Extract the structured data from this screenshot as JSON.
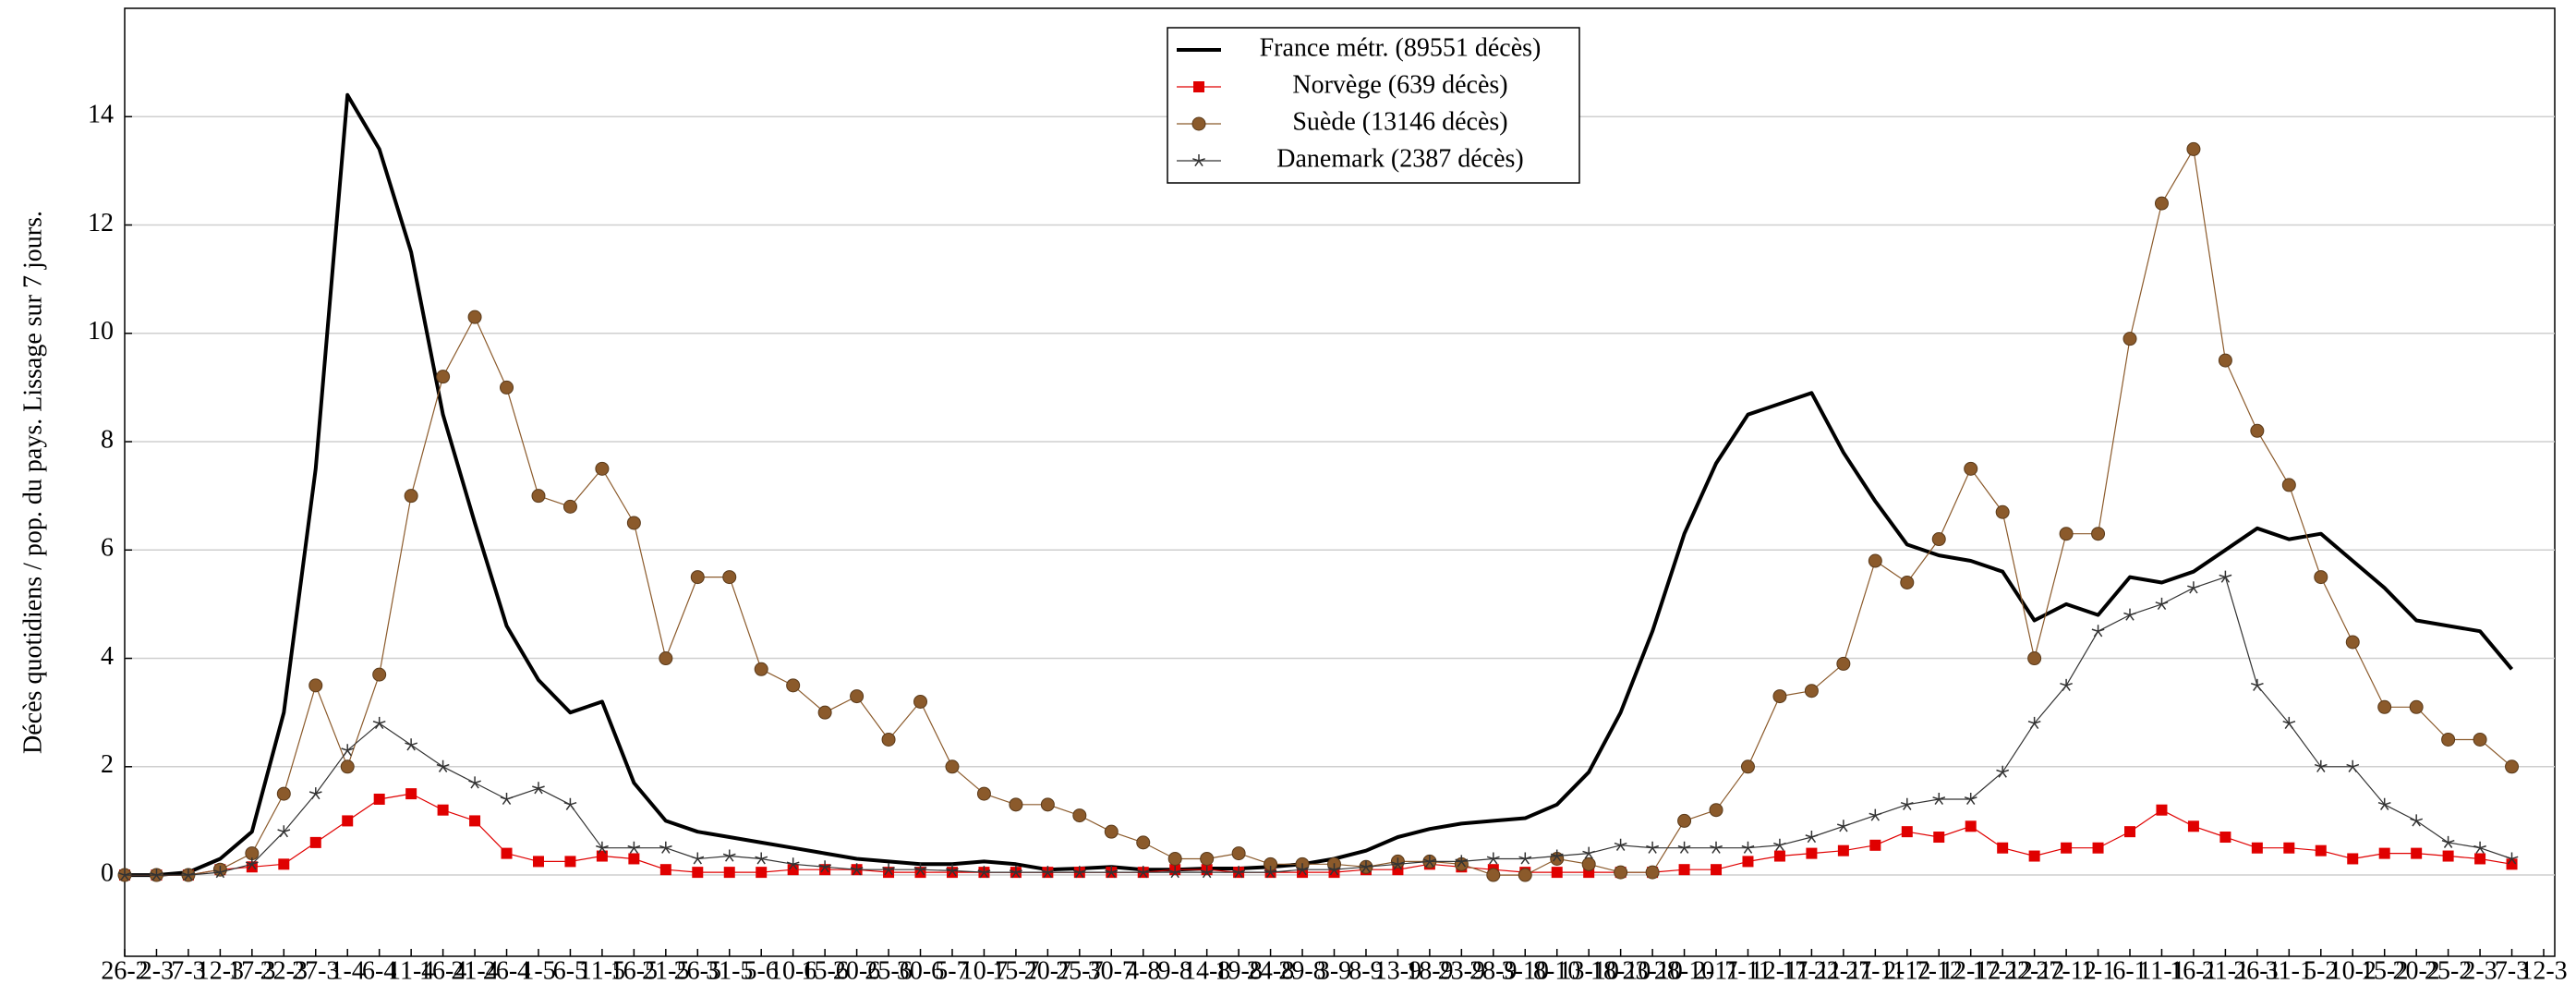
{
  "chart_data": {
    "type": "line",
    "y_label": "Décès quotidiens / pop. du pays. Lissage sur 7 jours.",
    "categories": [
      "26-2",
      "2-3",
      "7-3",
      "12-3",
      "17-3",
      "22-3",
      "27-3",
      "1-4",
      "6-4",
      "11-4",
      "16-4",
      "21-4",
      "26-4",
      "1-5",
      "6-5",
      "11-5",
      "16-5",
      "21-5",
      "26-5",
      "31-5",
      "5-6",
      "10-6",
      "15-6",
      "20-6",
      "25-6",
      "30-6",
      "5-7",
      "10-7",
      "15-7",
      "20-7",
      "25-7",
      "30-7",
      "4-8",
      "9-8",
      "14-8",
      "19-8",
      "24-8",
      "29-8",
      "3-9",
      "8-9",
      "13-9",
      "18-9",
      "23-9",
      "28-9",
      "3-10",
      "8-10",
      "13-10",
      "18-10",
      "23-10",
      "28-10",
      "2-11",
      "7-11",
      "12-11",
      "17-11",
      "22-11",
      "27-11",
      "2-12",
      "7-12",
      "12-12",
      "17-12",
      "22-12",
      "27-12",
      "1-1",
      "6-1",
      "11-1",
      "16-1",
      "21-1",
      "26-1",
      "31-1",
      "5-2",
      "10-2",
      "15-2",
      "20-2",
      "25-2",
      "2-3",
      "7-3",
      "12-3"
    ],
    "series": [
      {
        "name": "France métr. (89551 décès)",
        "color": "#000000",
        "marker": "none",
        "values": [
          0,
          0,
          0.05,
          0.3,
          0.8,
          3.0,
          7.5,
          14.4,
          13.4,
          11.5,
          8.5,
          6.5,
          4.6,
          3.6,
          3.0,
          3.2,
          1.7,
          1.0,
          0.8,
          0.7,
          0.6,
          0.5,
          0.4,
          0.3,
          0.25,
          0.2,
          0.2,
          0.25,
          0.2,
          0.1,
          0.12,
          0.15,
          0.1,
          0.1,
          0.12,
          0.12,
          0.15,
          0.2,
          0.3,
          0.45,
          0.7,
          0.85,
          0.95,
          1.0,
          1.05,
          1.3,
          1.9,
          3.0,
          4.5,
          6.3,
          7.6,
          8.5,
          8.7,
          8.9,
          7.8,
          6.9,
          6.1,
          5.9,
          5.8,
          5.6,
          4.7,
          5.0,
          4.8,
          5.5,
          5.4,
          5.6,
          6.0,
          6.4,
          6.2,
          6.3,
          5.8,
          5.3,
          4.7,
          4.6,
          4.5,
          3.8,
          null
        ]
      },
      {
        "name": "Norvège (639 décès)",
        "color": "#e00000",
        "marker": "square",
        "values": [
          0,
          0,
          0,
          0.1,
          0.15,
          0.2,
          0.6,
          1.0,
          1.4,
          1.5,
          1.2,
          1.0,
          0.4,
          0.25,
          0.25,
          0.35,
          0.3,
          0.1,
          0.05,
          0.05,
          0.05,
          0.1,
          0.1,
          0.1,
          0.05,
          0.05,
          0.05,
          0.05,
          0.05,
          0.05,
          0.05,
          0.05,
          0.05,
          0.1,
          0.1,
          0.05,
          0.05,
          0.05,
          0.05,
          0.1,
          0.1,
          0.2,
          0.15,
          0.1,
          0.05,
          0.05,
          0.05,
          0.05,
          0.05,
          0.1,
          0.1,
          0.25,
          0.35,
          0.4,
          0.45,
          0.55,
          0.8,
          0.7,
          0.9,
          0.5,
          0.35,
          0.5,
          0.5,
          0.8,
          1.2,
          0.9,
          0.7,
          0.5,
          0.5,
          0.45,
          0.3,
          0.4,
          0.4,
          0.35,
          0.3,
          0.2,
          null
        ]
      },
      {
        "name": "Suède (13146 décès)",
        "color": "#8b5a2b",
        "marker": "circle",
        "values": [
          0,
          0,
          0,
          0.1,
          0.4,
          1.5,
          3.5,
          2.0,
          3.7,
          7.0,
          9.2,
          10.3,
          9.0,
          7.0,
          6.8,
          7.5,
          6.5,
          4.0,
          5.5,
          5.5,
          3.8,
          3.5,
          3.0,
          3.3,
          2.5,
          3.2,
          2.0,
          1.5,
          1.3,
          1.3,
          1.1,
          0.8,
          0.6,
          0.3,
          0.3,
          0.4,
          0.2,
          0.2,
          0.2,
          0.15,
          0.25,
          0.25,
          0.2,
          0,
          0,
          0.3,
          0.2,
          0.05,
          0.05,
          1.0,
          1.2,
          2.0,
          3.3,
          3.4,
          3.9,
          5.8,
          5.4,
          6.2,
          7.5,
          6.7,
          4.0,
          6.3,
          6.3,
          9.9,
          12.4,
          13.4,
          9.5,
          8.2,
          7.2,
          5.5,
          4.3,
          3.1,
          3.1,
          2.5,
          2.5,
          2.0,
          null
        ]
      },
      {
        "name": "Danemark (2387 décès)",
        "color": "#333333",
        "marker": "star",
        "values": [
          0,
          0,
          0,
          0.05,
          0.2,
          0.8,
          1.5,
          2.3,
          2.8,
          2.4,
          2.0,
          1.7,
          1.4,
          1.6,
          1.3,
          0.5,
          0.5,
          0.5,
          0.3,
          0.35,
          0.3,
          0.2,
          0.15,
          0.1,
          0.1,
          0.1,
          0.08,
          0.05,
          0.05,
          0.05,
          0.05,
          0.05,
          0.05,
          0.05,
          0.05,
          0.05,
          0.05,
          0.1,
          0.1,
          0.15,
          0.2,
          0.25,
          0.25,
          0.3,
          0.3,
          0.35,
          0.4,
          0.55,
          0.5,
          0.5,
          0.5,
          0.5,
          0.55,
          0.7,
          0.9,
          1.1,
          1.3,
          1.4,
          1.4,
          1.9,
          2.8,
          3.5,
          4.5,
          4.8,
          5.0,
          5.3,
          5.5,
          3.5,
          2.8,
          2.0,
          2.0,
          1.3,
          1.0,
          0.6,
          0.5,
          0.3,
          null
        ]
      }
    ],
    "ylim": [
      -1.5,
      16
    ],
    "yticks": [
      0,
      2,
      4,
      6,
      8,
      10,
      12,
      14
    ],
    "grid": true,
    "legend": "top"
  }
}
